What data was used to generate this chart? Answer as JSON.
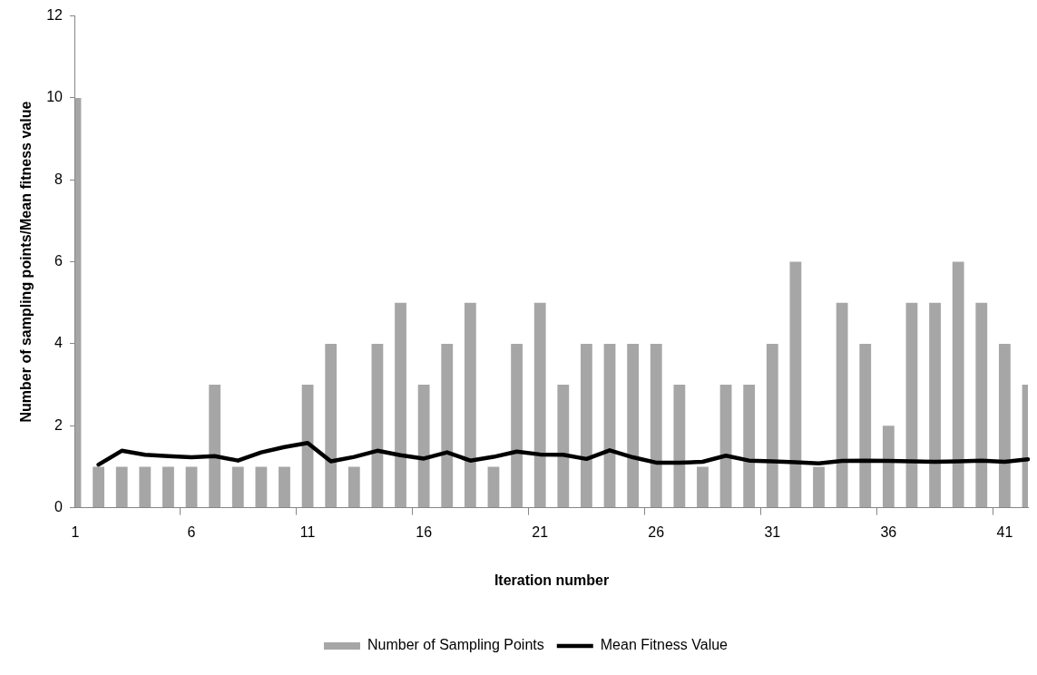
{
  "chart_data": {
    "type": "bar",
    "xlabel": "Iteration number",
    "ylabel": "Number of sampling points/Mean fitness value",
    "categories": [
      "1",
      null,
      null,
      null,
      null,
      "6",
      null,
      null,
      null,
      null,
      "11",
      null,
      null,
      null,
      null,
      "16",
      null,
      null,
      null,
      null,
      "21",
      null,
      null,
      null,
      null,
      "26",
      null,
      null,
      null,
      null,
      "31",
      null,
      null,
      null,
      null,
      "36",
      null,
      null,
      null,
      null,
      "41",
      null
    ],
    "series": [
      {
        "name": "Number of Sampling Points",
        "color": "#a6a6a6",
        "values": [
          10,
          1,
          1,
          1,
          1,
          1,
          3,
          1,
          1,
          1,
          3,
          4,
          1,
          4,
          5,
          3,
          4,
          5,
          1,
          4,
          5,
          3,
          4,
          4,
          4,
          4,
          3,
          1,
          3,
          3,
          4,
          6,
          1,
          5,
          4,
          2,
          5,
          5,
          6,
          5,
          4,
          3
        ]
      },
      {
        "name": "Mean Fitness Value",
        "type": "line",
        "color": "#000000",
        "values": [
          null,
          1.05,
          1.39,
          1.29,
          1.26,
          1.23,
          1.26,
          1.15,
          1.35,
          1.48,
          1.58,
          1.13,
          1.24,
          1.39,
          1.28,
          1.2,
          1.35,
          1.15,
          1.24,
          1.37,
          1.3,
          1.29,
          1.19,
          1.4,
          1.23,
          1.1,
          1.1,
          1.12,
          1.27,
          1.15,
          1.13,
          1.11,
          1.08,
          1.14,
          1.15,
          1.14,
          1.13,
          1.12,
          1.13,
          1.15,
          1.12,
          1.18
        ]
      }
    ],
    "ylim": [
      0,
      12
    ],
    "yticks": [
      0,
      2,
      4,
      6,
      8,
      10,
      12
    ],
    "grid": false,
    "legend": "bottom",
    "marker": "none",
    "line_style": "solid"
  }
}
